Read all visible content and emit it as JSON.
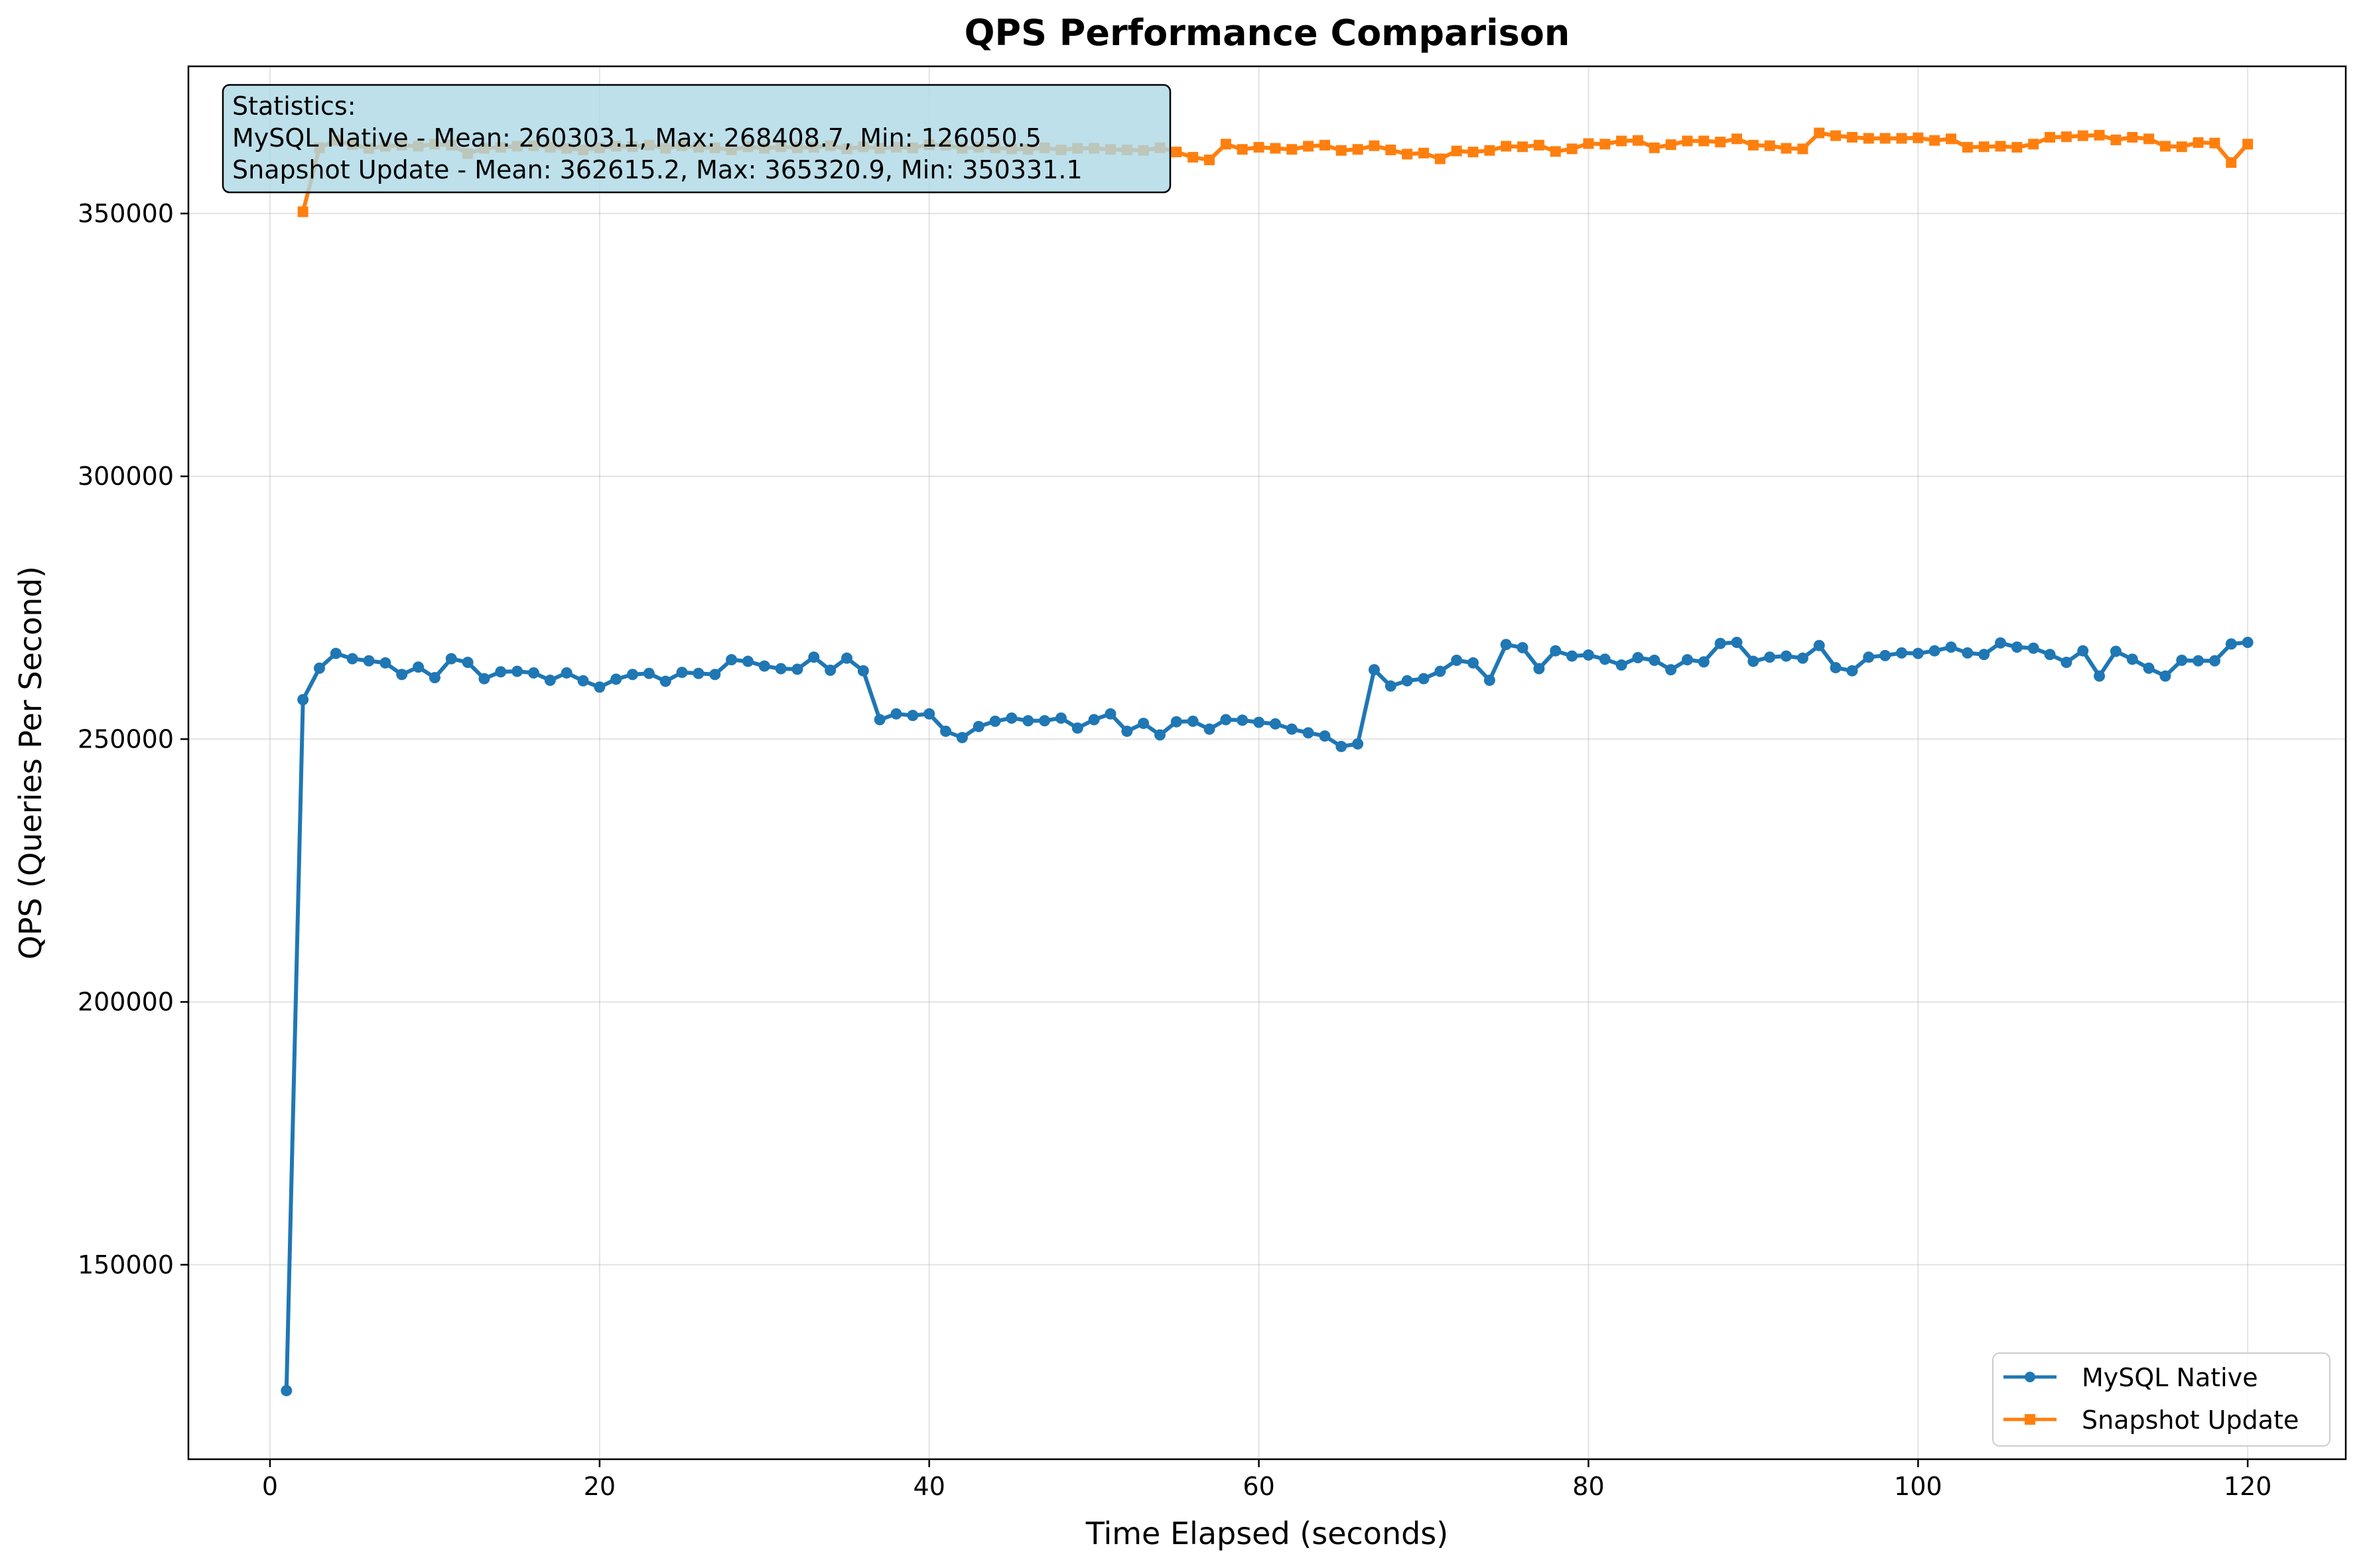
{
  "chart_data": {
    "type": "line",
    "title": "QPS Performance Comparison",
    "xlabel": "Time Elapsed (seconds)",
    "ylabel": "QPS (Queries Per Second)",
    "xlim": [
      -4.95,
      125.95
    ],
    "ylim": [
      113000,
      378000
    ],
    "xticks": [
      0,
      20,
      40,
      60,
      80,
      100,
      120
    ],
    "xtick_labels": [
      "0",
      "20",
      "40",
      "60",
      "80",
      "100",
      "120"
    ],
    "yticks": [
      150000,
      200000,
      250000,
      300000,
      350000
    ],
    "ytick_labels": [
      "150000",
      "200000",
      "250000",
      "300000",
      "350000"
    ],
    "grid": true,
    "legend_position": "lower right",
    "stats_box": {
      "heading": "Statistics:",
      "lines": [
        "MySQL Native - Mean: 260303.1, Max: 268408.7, Min: 126050.5",
        "Snapshot Update - Mean: 362615.2, Max: 365320.9, Min: 350331.1"
      ]
    },
    "series": [
      {
        "name": "MySQL Native",
        "color": "#1f77b4",
        "marker": "circle",
        "x": [
          1,
          2,
          3,
          4,
          5,
          6,
          7,
          8,
          9,
          10,
          11,
          12,
          13,
          14,
          15,
          16,
          17,
          18,
          19,
          20,
          21,
          22,
          23,
          24,
          25,
          26,
          27,
          28,
          29,
          30,
          31,
          32,
          33,
          34,
          35,
          36,
          37,
          38,
          39,
          40,
          41,
          42,
          43,
          44,
          45,
          46,
          47,
          48,
          49,
          50,
          51,
          52,
          53,
          54,
          55,
          56,
          57,
          58,
          59,
          60,
          61,
          62,
          63,
          64,
          65,
          66,
          67,
          68,
          69,
          70,
          71,
          72,
          73,
          74,
          75,
          76,
          77,
          78,
          79,
          80,
          81,
          82,
          83,
          84,
          85,
          86,
          87,
          88,
          89,
          90,
          91,
          92,
          93,
          94,
          95,
          96,
          97,
          98,
          99,
          100,
          101,
          102,
          103,
          104,
          105,
          106,
          107,
          108,
          109,
          110,
          111,
          112,
          113,
          114,
          115,
          116,
          117,
          118,
          119,
          120
        ],
        "values": [
          126050.5,
          257500,
          263500,
          266300,
          265300,
          264900,
          264500,
          262300,
          263700,
          261700,
          265300,
          264600,
          261500,
          262800,
          262900,
          262600,
          261200,
          262600,
          261100,
          259900,
          261400,
          262300,
          262500,
          261000,
          262700,
          262500,
          262300,
          265100,
          264800,
          263900,
          263400,
          263300,
          265600,
          263100,
          265400,
          263000,
          253700,
          254800,
          254500,
          254800,
          251500,
          250300,
          252400,
          253400,
          254000,
          253500,
          253500,
          254000,
          252100,
          253700,
          254800,
          251500,
          253000,
          250800,
          253300,
          253400,
          251900,
          253700,
          253600,
          253200,
          252900,
          251900,
          251200,
          250600,
          248600,
          249100,
          263200,
          260100,
          261100,
          261500,
          262900,
          265000,
          264500,
          261200,
          268000,
          267400,
          263400,
          266800,
          265800,
          266000,
          265200,
          264100,
          265500,
          265000,
          263200,
          265100,
          264700,
          268200,
          268400,
          264800,
          265600,
          265800,
          265400,
          267800,
          263600,
          263000,
          265600,
          265900,
          266400,
          266300,
          266800,
          267500,
          266400,
          266100,
          268300,
          267500,
          267300,
          266100,
          264600,
          266800,
          262000,
          266700,
          265200,
          263500,
          262000,
          265000,
          264900,
          264900,
          268100,
          268400
        ]
      },
      {
        "name": "Snapshot Update",
        "color": "#ff7f0e",
        "marker": "square",
        "x": [
          2,
          3,
          4,
          5,
          6,
          7,
          8,
          9,
          10,
          11,
          12,
          13,
          14,
          15,
          16,
          17,
          18,
          19,
          20,
          21,
          22,
          23,
          24,
          25,
          26,
          27,
          28,
          29,
          30,
          31,
          32,
          33,
          34,
          35,
          36,
          37,
          38,
          39,
          40,
          41,
          42,
          43,
          44,
          45,
          46,
          47,
          48,
          49,
          50,
          51,
          52,
          53,
          54,
          55,
          56,
          57,
          58,
          59,
          60,
          61,
          62,
          63,
          64,
          65,
          66,
          67,
          68,
          69,
          70,
          71,
          72,
          73,
          74,
          75,
          76,
          77,
          78,
          79,
          80,
          81,
          82,
          83,
          84,
          85,
          86,
          87,
          88,
          89,
          90,
          91,
          92,
          93,
          94,
          95,
          96,
          97,
          98,
          99,
          100,
          101,
          102,
          103,
          104,
          105,
          106,
          107,
          108,
          109,
          110,
          111,
          112,
          113,
          114,
          115,
          116,
          117,
          118,
          119,
          120
        ],
        "values": [
          350331.1,
          362500,
          363900,
          363100,
          362400,
          362800,
          363000,
          362800,
          363200,
          363000,
          361400,
          362400,
          362600,
          362800,
          362900,
          362600,
          362400,
          362100,
          362500,
          362800,
          362700,
          363000,
          362400,
          362900,
          362600,
          362500,
          362100,
          362700,
          362400,
          362700,
          362500,
          362600,
          362900,
          362300,
          362700,
          362400,
          362600,
          362500,
          363100,
          363000,
          362400,
          362600,
          362500,
          362300,
          362200,
          362500,
          362100,
          362400,
          362400,
          362200,
          362100,
          362000,
          362500,
          361700,
          360700,
          360200,
          363200,
          362200,
          362600,
          362400,
          362200,
          362800,
          363000,
          362000,
          362200,
          362900,
          362100,
          361300,
          361500,
          360400,
          361900,
          361700,
          362000,
          362800,
          362700,
          363000,
          361800,
          362300,
          363300,
          363200,
          363800,
          363900,
          362500,
          363100,
          363800,
          363800,
          363600,
          364200,
          363000,
          362900,
          362400,
          362300,
          365320.9,
          364800,
          364500,
          364300,
          364300,
          364300,
          364400,
          363900,
          364200,
          362600,
          362700,
          362800,
          362600,
          363200,
          364500,
          364600,
          364800,
          364900,
          364000,
          364500,
          364200,
          362800,
          362700,
          363500,
          363400,
          359700,
          363200
        ]
      }
    ]
  }
}
